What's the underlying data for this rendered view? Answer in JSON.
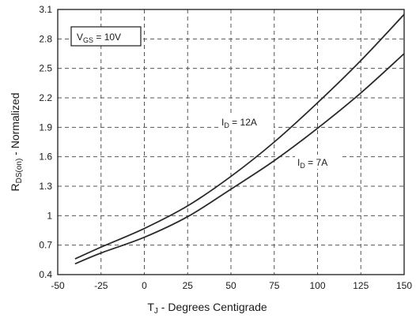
{
  "chart_data": {
    "type": "line",
    "title": "",
    "xlabel": {
      "main": "T",
      "sub": "J",
      "rest": " - Degrees Centigrade"
    },
    "ylabel": {
      "main": "R",
      "sub": "DS(on)",
      "rest": " - Normalized"
    },
    "xlim": [
      -50,
      150
    ],
    "ylim": [
      0.4,
      3.1
    ],
    "xticks": [
      "-50",
      "-25",
      "0",
      "25",
      "50",
      "75",
      "100",
      "125",
      "150"
    ],
    "yticks": [
      "0.4",
      "0.7",
      "1",
      "1.3",
      "1.6",
      "1.9",
      "2.2",
      "2.5",
      "2.8",
      "3.1"
    ],
    "grid": true,
    "condition": {
      "main": "V",
      "sub": "GS",
      "rest": " = 10V"
    },
    "series": [
      {
        "label": {
          "main": "I",
          "sub": "D",
          "rest": " = 12A"
        },
        "color": "#2a2a2a",
        "x": [
          -40,
          -25,
          0,
          25,
          50,
          75,
          100,
          125,
          150
        ],
        "y": [
          0.56,
          0.68,
          0.87,
          1.1,
          1.4,
          1.75,
          2.15,
          2.58,
          3.05
        ]
      },
      {
        "label": {
          "main": "I",
          "sub": "D",
          "rest": " = 7A"
        },
        "color": "#2a2a2a",
        "x": [
          -40,
          -25,
          0,
          25,
          50,
          75,
          100,
          125,
          150
        ],
        "y": [
          0.51,
          0.62,
          0.78,
          0.99,
          1.27,
          1.56,
          1.89,
          2.25,
          2.65
        ]
      }
    ]
  }
}
